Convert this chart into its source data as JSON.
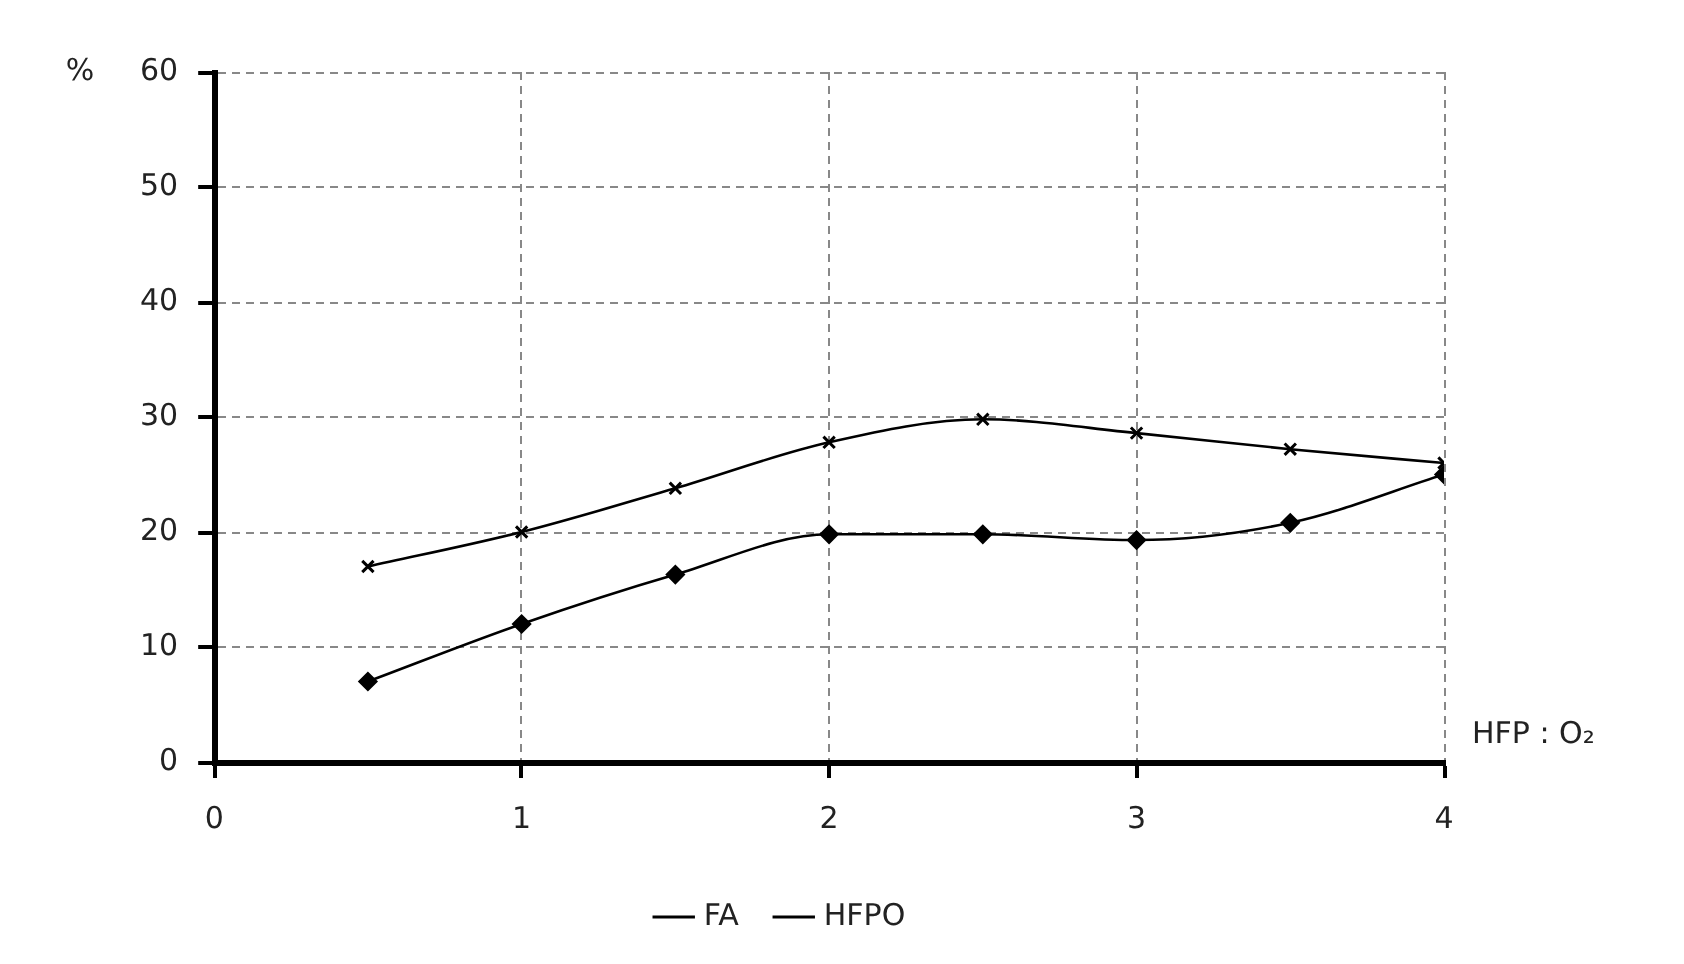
{
  "chart_data": {
    "type": "line",
    "xlabel": "HFP : O₂",
    "ylabel": "%",
    "x": [
      0.5,
      1,
      1.5,
      2,
      2.5,
      3,
      3.5,
      4
    ],
    "series": [
      {
        "name": "FA",
        "color": "#000000",
        "marker": "diamond",
        "values": [
          7,
          12,
          16.3,
          19.8,
          19.8,
          19.3,
          20.8,
          25
        ]
      },
      {
        "name": "HFPO",
        "color": "#000000",
        "marker": "cross",
        "values": [
          17,
          20,
          23.8,
          27.8,
          29.8,
          28.6,
          27.2,
          26
        ]
      }
    ],
    "xlim": [
      0,
      4
    ],
    "xticks": [
      0,
      1,
      2,
      3,
      4
    ],
    "ylim": [
      0,
      60
    ],
    "yticks": [
      0,
      10,
      20,
      30,
      40,
      50,
      60
    ],
    "grid": true,
    "legend": "bottom",
    "line_style": "solid"
  }
}
